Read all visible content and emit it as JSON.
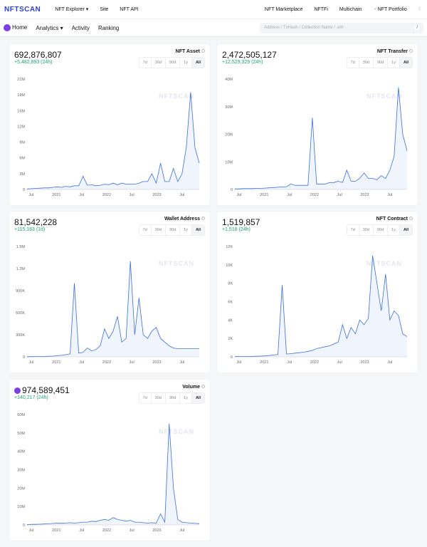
{
  "header": {
    "logo": "NFTSCAN",
    "nav": [
      "NFT Explorer ▾",
      "Site",
      "NFT API"
    ],
    "right": [
      "NFT Marketplace",
      "NFTFi",
      "Multichain"
    ],
    "portfolio": "NFT Portfolio"
  },
  "subnav": {
    "items": [
      "Home",
      "Analytics ▾",
      "Activity",
      "Ranking"
    ],
    "search_placeholder": "Address / TxHash / Collection Name / .eth",
    "search_shortcut": "/"
  },
  "ranges": [
    "7d",
    "30d",
    "90d",
    "1y",
    "All"
  ],
  "colors": {
    "line": "#3b6fe0",
    "positive": "#1aa37a"
  },
  "cards": [
    {
      "value": "692,876,807",
      "change": "+5,482,893 (24h)",
      "label": "NFT Asset"
    },
    {
      "value": "2,472,505,127",
      "change": "+12,529,329 (24h)",
      "label": "NFT Transfer"
    },
    {
      "value": "81,542,228",
      "change": "+115,183 (1d)",
      "label": "Wallet Address"
    },
    {
      "value": "1,519,857",
      "change": "+1,518 (24h)",
      "label": "NFT Contract"
    },
    {
      "value": "974,589,451",
      "change": "+140,217 (24h)",
      "label": "Volume"
    }
  ],
  "chart_data": [
    {
      "type": "line",
      "watermark": "NFTSCAN",
      "x_ticks": [
        "Jul",
        "2021",
        "Jul",
        "2022",
        "Jul",
        "2023",
        "Jul"
      ],
      "y_ticks": [
        "0",
        "3M",
        "6M",
        "9M",
        "12M",
        "15M",
        "18M",
        "21M"
      ],
      "ylim": [
        0,
        21000000
      ],
      "x_range": [
        "2020-06",
        "2023-10"
      ],
      "values": [
        100000,
        150000,
        200000,
        250000,
        300000,
        300000,
        400000,
        500000,
        400000,
        600000,
        500000,
        700000,
        700000,
        2500000,
        800000,
        900000,
        700000,
        800000,
        1000000,
        900000,
        1200000,
        900000,
        1200000,
        1000000,
        1000000,
        1000000,
        1200000,
        1500000,
        1500000,
        3000000,
        1200000,
        5000000,
        1500000,
        1500000,
        4000000,
        1500000,
        3000000,
        8000000,
        18500000,
        8000000,
        5000000
      ]
    },
    {
      "type": "line",
      "watermark": "NFTSCAN",
      "x_ticks": [
        "Jul",
        "2021",
        "Jul",
        "2022",
        "Jul",
        "2023",
        "Jul"
      ],
      "y_ticks": [
        "0",
        "10M",
        "20M",
        "30M",
        "40M"
      ],
      "ylim": [
        0,
        40000000
      ],
      "x_range": [
        "2020-06",
        "2023-10"
      ],
      "values": [
        200000,
        200000,
        300000,
        300000,
        300000,
        400000,
        400000,
        500000,
        600000,
        700000,
        800000,
        900000,
        1000000,
        2000000,
        1500000,
        1500000,
        1500000,
        1500000,
        26000000,
        2000000,
        2000000,
        2000000,
        2500000,
        2500000,
        3000000,
        2500000,
        7000000,
        3000000,
        3000000,
        4000000,
        6000000,
        4000000,
        4000000,
        3500000,
        5000000,
        4000000,
        7000000,
        12000000,
        37000000,
        20000000,
        14000000
      ]
    },
    {
      "type": "line",
      "watermark": "NFTSCAN",
      "x_ticks": [
        "Jul",
        "2021",
        "Jul",
        "2022",
        "Jul",
        "2023",
        "Jul"
      ],
      "y_ticks": [
        "0",
        "300K",
        "600K",
        "900K",
        "1.2M",
        "1.5M"
      ],
      "ylim": [
        0,
        1500000
      ],
      "x_range": [
        "2020-06",
        "2023-10"
      ],
      "values": [
        2000,
        3000,
        4000,
        5000,
        6000,
        8000,
        10000,
        15000,
        20000,
        30000,
        40000,
        1000000,
        50000,
        60000,
        120000,
        80000,
        100000,
        150000,
        380000,
        250000,
        350000,
        550000,
        200000,
        250000,
        1300000,
        300000,
        800000,
        300000,
        250000,
        350000,
        400000,
        250000,
        200000,
        150000,
        120000,
        110000,
        110000,
        110000,
        110000,
        110000,
        110000
      ]
    },
    {
      "type": "line",
      "watermark": "NFTSCAN",
      "x_ticks": [
        "Jul",
        "2021",
        "Jul",
        "2022",
        "Jul",
        "2023",
        "Jul"
      ],
      "y_ticks": [
        "0",
        "2K",
        "4K",
        "6K",
        "8K",
        "10K",
        "12K"
      ],
      "ylim": [
        0,
        12000
      ],
      "x_range": [
        "2020-06",
        "2023-10"
      ],
      "values": [
        20,
        30,
        30,
        40,
        50,
        60,
        80,
        100,
        150,
        200,
        250,
        7800,
        300,
        350,
        400,
        450,
        500,
        600,
        700,
        900,
        1000,
        1100,
        1200,
        1400,
        1600,
        3500,
        2000,
        3200,
        2500,
        4000,
        3500,
        4200,
        11000,
        8000,
        5000,
        9000,
        4000,
        5000,
        4500,
        2500,
        2200
      ]
    },
    {
      "type": "line",
      "watermark": "NFTSCAN",
      "x_ticks": [
        "Jul",
        "2021",
        "Jul",
        "2022",
        "Jul",
        "2023",
        "Jul"
      ],
      "y_ticks": [
        "0",
        "10M",
        "20M",
        "30M",
        "40M",
        "50M",
        "60M"
      ],
      "ylim": [
        0,
        60000000
      ],
      "x_range": [
        "2020-06",
        "2023-10"
      ],
      "values": [
        200000,
        300000,
        300000,
        400000,
        500000,
        600000,
        800000,
        1000000,
        900000,
        1000000,
        1200000,
        1000000,
        1200000,
        1500000,
        1500000,
        2000000,
        1800000,
        2500000,
        3000000,
        2500000,
        4000000,
        3000000,
        2500000,
        2000000,
        2500000,
        1500000,
        1500000,
        1200000,
        1000000,
        1200000,
        1000000,
        6000000,
        1500000,
        55000000,
        20000000,
        3000000,
        1500000,
        1200000,
        1000000,
        800000,
        700000
      ]
    }
  ]
}
